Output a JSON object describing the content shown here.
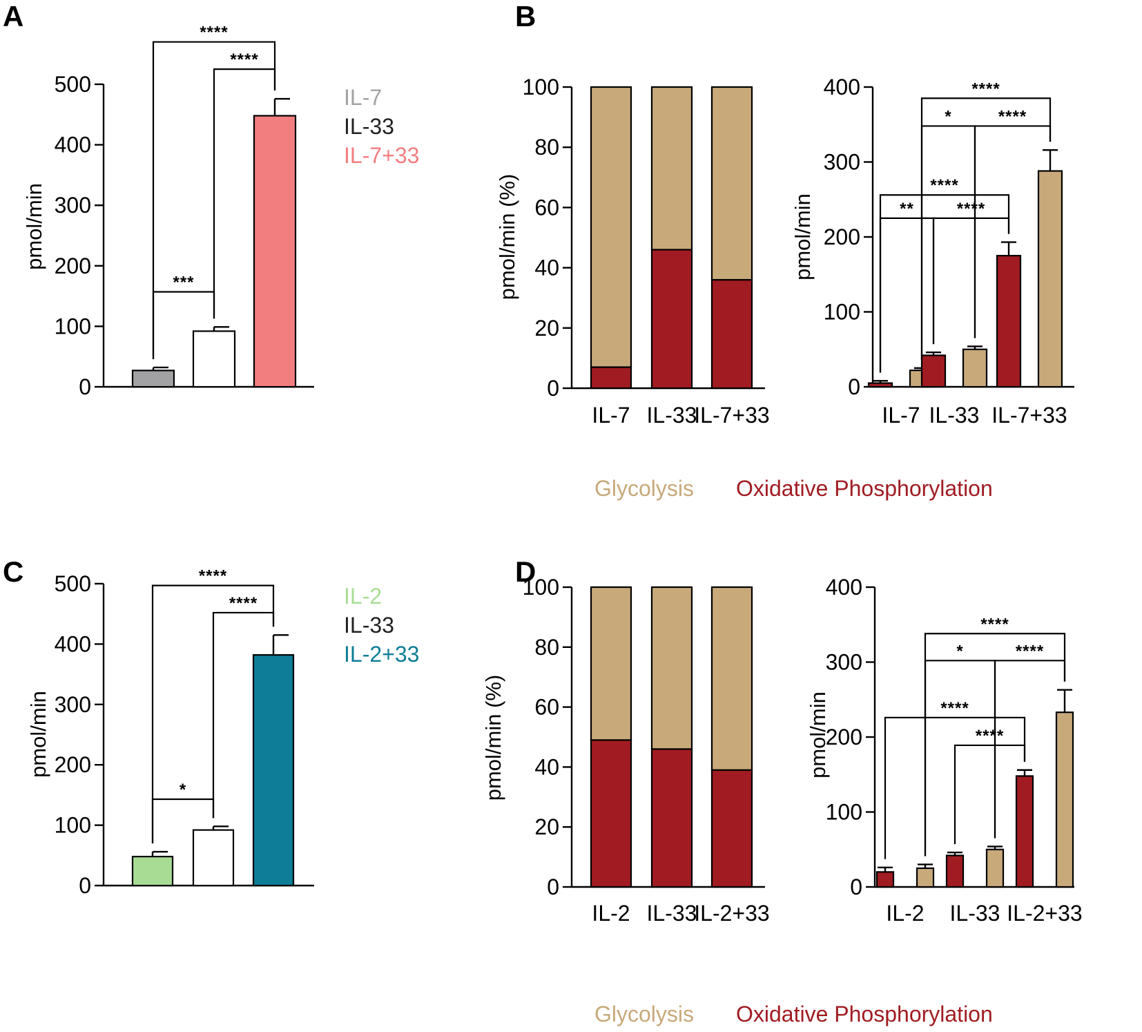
{
  "chart_data": [
    {
      "panel": "A",
      "type": "bar",
      "ylabel": "pmol/min",
      "ylim": [
        0,
        500
      ],
      "yticks": [
        0,
        100,
        200,
        300,
        400,
        500
      ],
      "categories": [
        "IL-7",
        "IL-33",
        "IL-7+33"
      ],
      "values": [
        27,
        92,
        448
      ],
      "errors": [
        5,
        7,
        28
      ],
      "colors": [
        "#a2a2a4",
        "#ffffff",
        "#f37e80"
      ],
      "legend": [
        {
          "label": "IL-7",
          "color": "#a2a2a4"
        },
        {
          "label": "IL-33",
          "color": "#222222"
        },
        {
          "label": "IL-7+33",
          "color": "#f37e80"
        }
      ],
      "significance": [
        {
          "from": 0,
          "to": 2,
          "label": "****",
          "level": 570
        },
        {
          "from": 1,
          "to": 2,
          "label": "****",
          "level": 525
        },
        {
          "from": 0,
          "to": 1,
          "label": "***",
          "level": 157
        }
      ]
    },
    {
      "panel": "B",
      "type": "stacked-bar",
      "ylabel": "pmol/min (%)",
      "ylim": [
        0,
        100
      ],
      "yticks": [
        0,
        20,
        40,
        60,
        80,
        100
      ],
      "categories": [
        "IL-7",
        "IL-33",
        "IL-7+33"
      ],
      "series": [
        {
          "name": "Oxidative Phosphorylation",
          "color": "#a01c22",
          "values": [
            7,
            46,
            36
          ]
        },
        {
          "name": "Glycolysis",
          "color": "#c8a97a",
          "values": [
            93,
            54,
            64
          ]
        }
      ]
    },
    {
      "panel": "B",
      "type": "grouped-bar",
      "ylabel": "pmol/min",
      "ylim": [
        0,
        400
      ],
      "yticks": [
        0,
        100,
        200,
        300,
        400
      ],
      "categories": [
        "IL-7",
        "IL-33",
        "IL-7+33"
      ],
      "series": [
        {
          "name": "Oxidative Phosphorylation",
          "color": "#a01c22",
          "values": [
            5,
            42,
            175
          ],
          "errors": [
            3,
            4,
            18
          ]
        },
        {
          "name": "Glycolysis",
          "color": "#c8a97a",
          "values": [
            22,
            50,
            288
          ],
          "errors": [
            3,
            4,
            28
          ]
        }
      ],
      "significance": [
        {
          "from": 1,
          "to": 5,
          "label": "****",
          "level": 385
        },
        {
          "from": 1,
          "to": 3,
          "label": "*",
          "level": 348
        },
        {
          "from": 3,
          "to": 5,
          "label": "****",
          "level": 348
        },
        {
          "from": 0,
          "to": 4,
          "label": "****",
          "level": 256
        },
        {
          "from": 0,
          "to": 2,
          "label": "**",
          "level": 225
        },
        {
          "from": 2,
          "to": 4,
          "label": "****",
          "level": 225
        }
      ]
    },
    {
      "panel": "C",
      "type": "bar",
      "ylabel": "pmol/min",
      "ylim": [
        0,
        500
      ],
      "yticks": [
        0,
        100,
        200,
        300,
        400,
        500
      ],
      "categories": [
        "IL-2",
        "IL-33",
        "IL-2+33"
      ],
      "values": [
        48,
        92,
        382
      ],
      "errors": [
        8,
        6,
        33
      ],
      "colors": [
        "#a8dc94",
        "#ffffff",
        "#0e7d97"
      ],
      "legend": [
        {
          "label": "IL-2",
          "color": "#a8dc94"
        },
        {
          "label": "IL-33",
          "color": "#222222"
        },
        {
          "label": "IL-2+33",
          "color": "#0e7d97"
        }
      ],
      "significance": [
        {
          "from": 0,
          "to": 2,
          "label": "****",
          "level": 497
        },
        {
          "from": 1,
          "to": 2,
          "label": "****",
          "level": 452
        },
        {
          "from": 0,
          "to": 1,
          "label": "*",
          "level": 143
        }
      ]
    },
    {
      "panel": "D",
      "type": "stacked-bar",
      "ylabel": "pmol/min (%)",
      "ylim": [
        0,
        100
      ],
      "yticks": [
        0,
        20,
        40,
        60,
        80,
        100
      ],
      "categories": [
        "IL-2",
        "IL-33",
        "IL-2+33"
      ],
      "series": [
        {
          "name": "Oxidative Phosphorylation",
          "color": "#a01c22",
          "values": [
            49,
            46,
            39
          ]
        },
        {
          "name": "Glycolysis",
          "color": "#c8a97a",
          "values": [
            51,
            54,
            61
          ]
        }
      ]
    },
    {
      "panel": "D",
      "type": "grouped-bar",
      "ylabel": "pmol/min",
      "ylim": [
        0,
        400
      ],
      "yticks": [
        0,
        100,
        200,
        300,
        400
      ],
      "categories": [
        "IL-2",
        "IL-33",
        "IL-2+33"
      ],
      "series": [
        {
          "name": "Oxidative Phosphorylation",
          "color": "#a01c22",
          "values": [
            20,
            42,
            148
          ],
          "errors": [
            6,
            4,
            8
          ]
        },
        {
          "name": "Glycolysis",
          "color": "#c8a97a",
          "values": [
            25,
            50,
            233
          ],
          "errors": [
            5,
            4,
            30
          ]
        }
      ],
      "significance": [
        {
          "from": 1,
          "to": 5,
          "label": "****",
          "level": 338
        },
        {
          "from": 1,
          "to": 3,
          "label": "*",
          "level": 302
        },
        {
          "from": 3,
          "to": 5,
          "label": "****",
          "level": 302
        },
        {
          "from": 0,
          "to": 4,
          "label": "****",
          "level": 226
        },
        {
          "from": 2,
          "to": 4,
          "label": "****",
          "level": 189
        }
      ]
    }
  ],
  "legend_bottom": {
    "glycolysis": "Glycolysis",
    "oxphos": "Oxidative Phosphorylation",
    "glycolysis_color": "#c8a97a",
    "oxphos_color": "#a01c22"
  }
}
